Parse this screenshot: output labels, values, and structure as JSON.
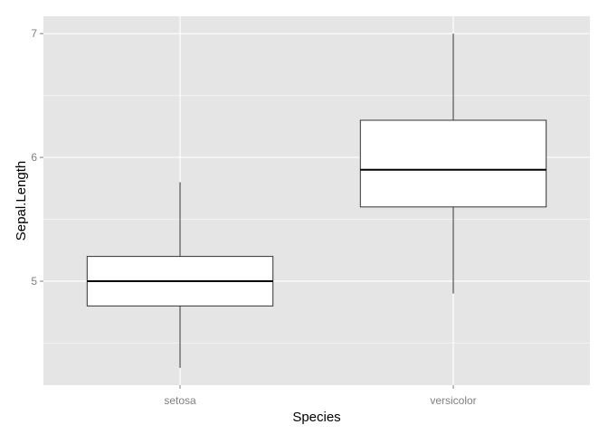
{
  "chart_data": {
    "type": "boxplot",
    "title": "",
    "xlabel": "Species",
    "ylabel": "Sepal.Length",
    "categories": [
      "setosa",
      "versicolor"
    ],
    "boxes": [
      {
        "category": "setosa",
        "whisker_low": 4.3,
        "q1": 4.8,
        "median": 5.0,
        "q3": 5.2,
        "whisker_high": 5.8
      },
      {
        "category": "versicolor",
        "whisker_low": 4.9,
        "q1": 5.6,
        "median": 5.9,
        "q3": 6.3,
        "whisker_high": 7.0
      }
    ],
    "ylim": [
      4.16,
      7.14
    ],
    "yticks": [
      5,
      6,
      7
    ],
    "ytick_labels": [
      "5",
      "6",
      "7"
    ],
    "grid": true,
    "colors": {
      "panel": "#e5e5e5",
      "grid_major": "#ffffff",
      "grid_minor": "#f2f2f2",
      "box_fill": "#ffffff",
      "box_stroke": "#333333"
    }
  }
}
